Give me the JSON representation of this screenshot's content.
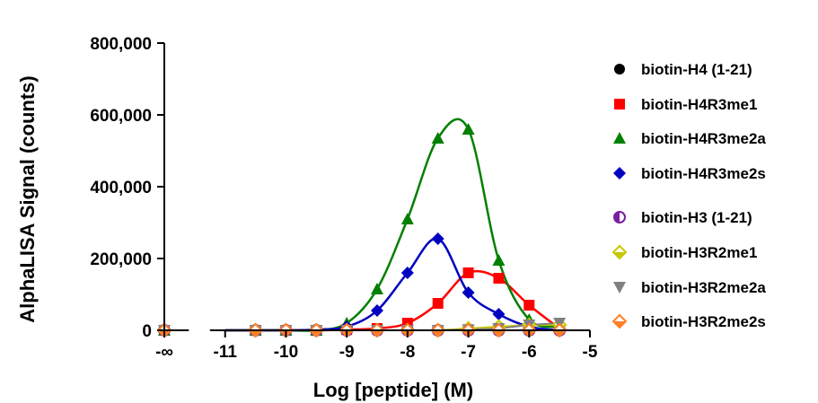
{
  "chart_data": {
    "type": "scatter",
    "xlabel": "Log [peptide] (M)",
    "ylabel": "AlphaLISA Signal (counts)",
    "ylim": [
      0,
      800000
    ],
    "y_ticks": [
      0,
      200000,
      400000,
      600000,
      800000
    ],
    "y_tick_labels": [
      "0",
      "200,000",
      "400,000",
      "600,000",
      "800,000"
    ],
    "x_ticks": [
      -12,
      -11,
      -10,
      -9,
      -8,
      -7,
      -6,
      -5
    ],
    "x_tick_labels": [
      "-∞",
      "-11",
      "-10",
      "-9",
      "-8",
      "-7",
      "-6",
      "-5"
    ],
    "x_axis_break": true,
    "legend_position": "right",
    "series": [
      {
        "name": "biotin-H4 (1-21)",
        "color": "#000000",
        "marker": "circle",
        "x": [
          -12,
          -10.5,
          -10,
          -9.5,
          -9,
          -8.5,
          -8,
          -7.5,
          -7,
          -6.5,
          -6,
          -5.5
        ],
        "y": [
          0,
          0,
          0,
          0,
          0,
          0,
          0,
          0,
          0,
          0,
          0,
          0
        ],
        "fit": "flat"
      },
      {
        "name": "biotin-H4R3me1",
        "color": "#ff0000",
        "marker": "square",
        "x": [
          -12,
          -10.5,
          -10,
          -9.5,
          -9,
          -8.5,
          -8,
          -7.5,
          -7,
          -6.5,
          -6,
          -5.5
        ],
        "y": [
          0,
          0,
          0,
          0,
          2000,
          5000,
          20000,
          75000,
          160000,
          145000,
          70000,
          5000
        ],
        "fit": "bell"
      },
      {
        "name": "biotin-H4R3me2a",
        "color": "#008000",
        "marker": "triangle-up",
        "x": [
          -12,
          -10.5,
          -10,
          -9.5,
          -9,
          -8.5,
          -8,
          -7.5,
          -7,
          -6.5,
          -6,
          -5.5
        ],
        "y": [
          0,
          0,
          0,
          0,
          20000,
          115000,
          310000,
          535000,
          560000,
          195000,
          30000,
          10000
        ],
        "fit": "bell"
      },
      {
        "name": "biotin-H4R3me2s",
        "color": "#0000c0",
        "marker": "diamond",
        "x": [
          -12,
          -10.5,
          -10,
          -9.5,
          -9,
          -8.5,
          -8,
          -7.5,
          -7,
          -6.5,
          -6,
          -5.5
        ],
        "y": [
          0,
          0,
          0,
          2000,
          10000,
          55000,
          160000,
          255000,
          105000,
          45000,
          10000,
          0
        ],
        "fit": "bell"
      },
      {
        "name": "biotin-H3 (1-21)",
        "color": "#7b1fa2",
        "marker": "half-circle",
        "x": [
          -12,
          -10.5,
          -10,
          -9.5,
          -9,
          -8.5,
          -8,
          -7.5,
          -7,
          -6.5,
          -6,
          -5.5
        ],
        "y": [
          0,
          0,
          0,
          0,
          0,
          0,
          0,
          0,
          0,
          0,
          0,
          0
        ],
        "fit": "flat"
      },
      {
        "name": "biotin-H3R2me1",
        "color": "#c8c800",
        "marker": "diamond-half",
        "x": [
          -12,
          -10.5,
          -10,
          -9.5,
          -9,
          -8.5,
          -8,
          -7.5,
          -7,
          -6.5,
          -6,
          -5.5
        ],
        "y": [
          0,
          0,
          0,
          0,
          0,
          0,
          0,
          0,
          5000,
          10000,
          15000,
          15000
        ],
        "fit": "flat"
      },
      {
        "name": "biotin-H3R2me2a",
        "color": "#808080",
        "marker": "triangle-down",
        "x": [
          -12,
          -10.5,
          -10,
          -9.5,
          -9,
          -8.5,
          -8,
          -7.5,
          -7,
          -6.5,
          -6,
          -5.5
        ],
        "y": [
          0,
          0,
          0,
          0,
          0,
          0,
          0,
          0,
          2000,
          5000,
          15000,
          20000
        ],
        "fit": "flat"
      },
      {
        "name": "biotin-H3R2me2s",
        "color": "#ff7f27",
        "marker": "diamond-half",
        "x": [
          -12,
          -10.5,
          -10,
          -9.5,
          -9,
          -8.5,
          -8,
          -7.5,
          -7,
          -6.5,
          -6,
          -5.5
        ],
        "y": [
          0,
          0,
          0,
          0,
          0,
          0,
          0,
          0,
          0,
          0,
          0,
          0
        ],
        "fit": "flat"
      }
    ]
  }
}
